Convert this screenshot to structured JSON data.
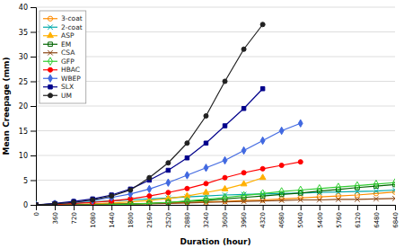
{
  "chart_data": {
    "type": "line",
    "xlabel": "Duration (hour)",
    "ylabel": "Mean Creepage (mm)",
    "xlim": [
      0,
      6840
    ],
    "ylim": [
      0,
      40
    ],
    "xticks": [
      0,
      360,
      720,
      1080,
      1440,
      1800,
      2160,
      2520,
      2880,
      3240,
      3600,
      3960,
      4320,
      4680,
      5040,
      5400,
      5760,
      6120,
      6480,
      6840
    ],
    "yticks": [
      0,
      5,
      10,
      15,
      20,
      25,
      30,
      35,
      40
    ],
    "grid": "y",
    "legend": "top-left",
    "series": [
      {
        "name": "3-coat",
        "color": "#FF8C00",
        "marker": "circle-open",
        "x": [
          0,
          360,
          720,
          1080,
          1440,
          1800,
          2160,
          2520,
          2880,
          3240,
          3600,
          3960,
          4320,
          4680,
          5040,
          5400,
          5760,
          6120,
          6480,
          6840
        ],
        "values": [
          0,
          0.05,
          0.05,
          0.1,
          0.15,
          0.2,
          0.3,
          0.4,
          0.5,
          0.6,
          0.7,
          0.9,
          1.0,
          1.2,
          1.4,
          1.6,
          1.8,
          2.0,
          2.3,
          2.6
        ]
      },
      {
        "name": "2-coat",
        "color": "#00AAAA",
        "marker": "x",
        "x": [
          0,
          360,
          720,
          1080,
          1440,
          1800,
          2160,
          2520,
          2880,
          3240,
          3600,
          3960,
          4320,
          4680,
          5040,
          5400,
          5760,
          6120,
          6480,
          6840
        ],
        "values": [
          0,
          0.1,
          0.3,
          0.6,
          0.8,
          1.0,
          1.2,
          1.4,
          1.6,
          1.8,
          2.0,
          2.1,
          2.2,
          2.3,
          2.4,
          2.5,
          2.6,
          2.7,
          2.8,
          3.0
        ]
      },
      {
        "name": "ASP",
        "color": "#FFB000",
        "marker": "triangle",
        "x": [
          0,
          360,
          720,
          1080,
          1440,
          1800,
          2160,
          2520,
          2880,
          3240,
          3600,
          3960,
          4320
        ],
        "values": [
          0,
          0.05,
          0.1,
          0.2,
          0.4,
          0.6,
          0.9,
          1.3,
          1.8,
          2.5,
          3.2,
          4.2,
          5.5
        ]
      },
      {
        "name": "EM",
        "color": "#006400",
        "marker": "square-open",
        "x": [
          0,
          360,
          720,
          1080,
          1440,
          1800,
          2160,
          2520,
          2880,
          3240,
          3600,
          3960,
          4320,
          4680,
          5040,
          5400,
          5760,
          6120,
          6480,
          6840
        ],
        "values": [
          0,
          0.0,
          0.0,
          0.05,
          0.1,
          0.2,
          0.3,
          0.5,
          0.7,
          0.9,
          1.2,
          1.5,
          1.8,
          2.1,
          2.4,
          2.8,
          3.1,
          3.5,
          3.8,
          4.1
        ]
      },
      {
        "name": "CSA",
        "color": "#8B4513",
        "marker": "x",
        "x": [
          0,
          360,
          720,
          1080,
          1440,
          1800,
          2160,
          2520,
          2880,
          3240,
          3600,
          3960,
          4320,
          4680,
          5040,
          5400,
          5760,
          6120,
          6480,
          6840
        ],
        "values": [
          0,
          0.05,
          0.05,
          0.1,
          0.1,
          0.15,
          0.2,
          0.3,
          0.4,
          0.5,
          0.6,
          0.7,
          0.8,
          0.9,
          1.0,
          1.0,
          1.1,
          1.1,
          1.2,
          1.3
        ]
      },
      {
        "name": "GFP",
        "color": "#32CD32",
        "marker": "diamond-open",
        "x": [
          0,
          360,
          720,
          1080,
          1440,
          1800,
          2160,
          2520,
          2880,
          3240,
          3600,
          3960,
          4320,
          4680,
          5040,
          5400,
          5760,
          6120,
          6480,
          6840
        ],
        "values": [
          0,
          0.0,
          0.0,
          0.0,
          0.05,
          0.15,
          0.3,
          0.5,
          0.8,
          1.1,
          1.5,
          1.9,
          2.3,
          2.7,
          3.0,
          3.3,
          3.6,
          3.9,
          4.2,
          4.5
        ]
      },
      {
        "name": "HBAC",
        "color": "#FF0000",
        "marker": "circle",
        "x": [
          0,
          360,
          720,
          1080,
          1440,
          1800,
          2160,
          2520,
          2880,
          3240,
          3600,
          3960,
          4320,
          4680,
          5040
        ],
        "values": [
          0,
          0.1,
          0.3,
          0.5,
          0.8,
          1.2,
          1.8,
          2.5,
          3.3,
          4.3,
          5.5,
          6.5,
          7.3,
          8.0,
          8.7
        ]
      },
      {
        "name": "WBEP",
        "color": "#4169E1",
        "marker": "diamond",
        "x": [
          0,
          360,
          720,
          1080,
          1440,
          1800,
          2160,
          2520,
          2880,
          3240,
          3600,
          3960,
          4320,
          4680,
          5040
        ],
        "values": [
          0,
          0.2,
          0.5,
          0.9,
          1.5,
          2.2,
          3.2,
          4.5,
          6.0,
          7.5,
          9.0,
          11.0,
          13.0,
          15.0,
          16.5
        ]
      },
      {
        "name": "SLX",
        "color": "#00008B",
        "marker": "square",
        "x": [
          0,
          360,
          720,
          1080,
          1440,
          1800,
          2160,
          2520,
          2880,
          3240,
          3600,
          3960,
          4320
        ],
        "values": [
          0,
          0.3,
          0.7,
          1.2,
          2.0,
          3.2,
          5.0,
          7.0,
          9.5,
          12.5,
          16.0,
          19.5,
          23.5
        ]
      },
      {
        "name": "UM",
        "color": "#222222",
        "marker": "circle",
        "x": [
          0,
          360,
          720,
          1080,
          1440,
          1800,
          2160,
          2520,
          2880,
          3240,
          3600,
          3960,
          4320
        ],
        "values": [
          0,
          0.2,
          0.5,
          1.0,
          1.8,
          3.0,
          5.5,
          8.5,
          12.5,
          18.0,
          25.0,
          31.5,
          36.5
        ]
      }
    ]
  }
}
